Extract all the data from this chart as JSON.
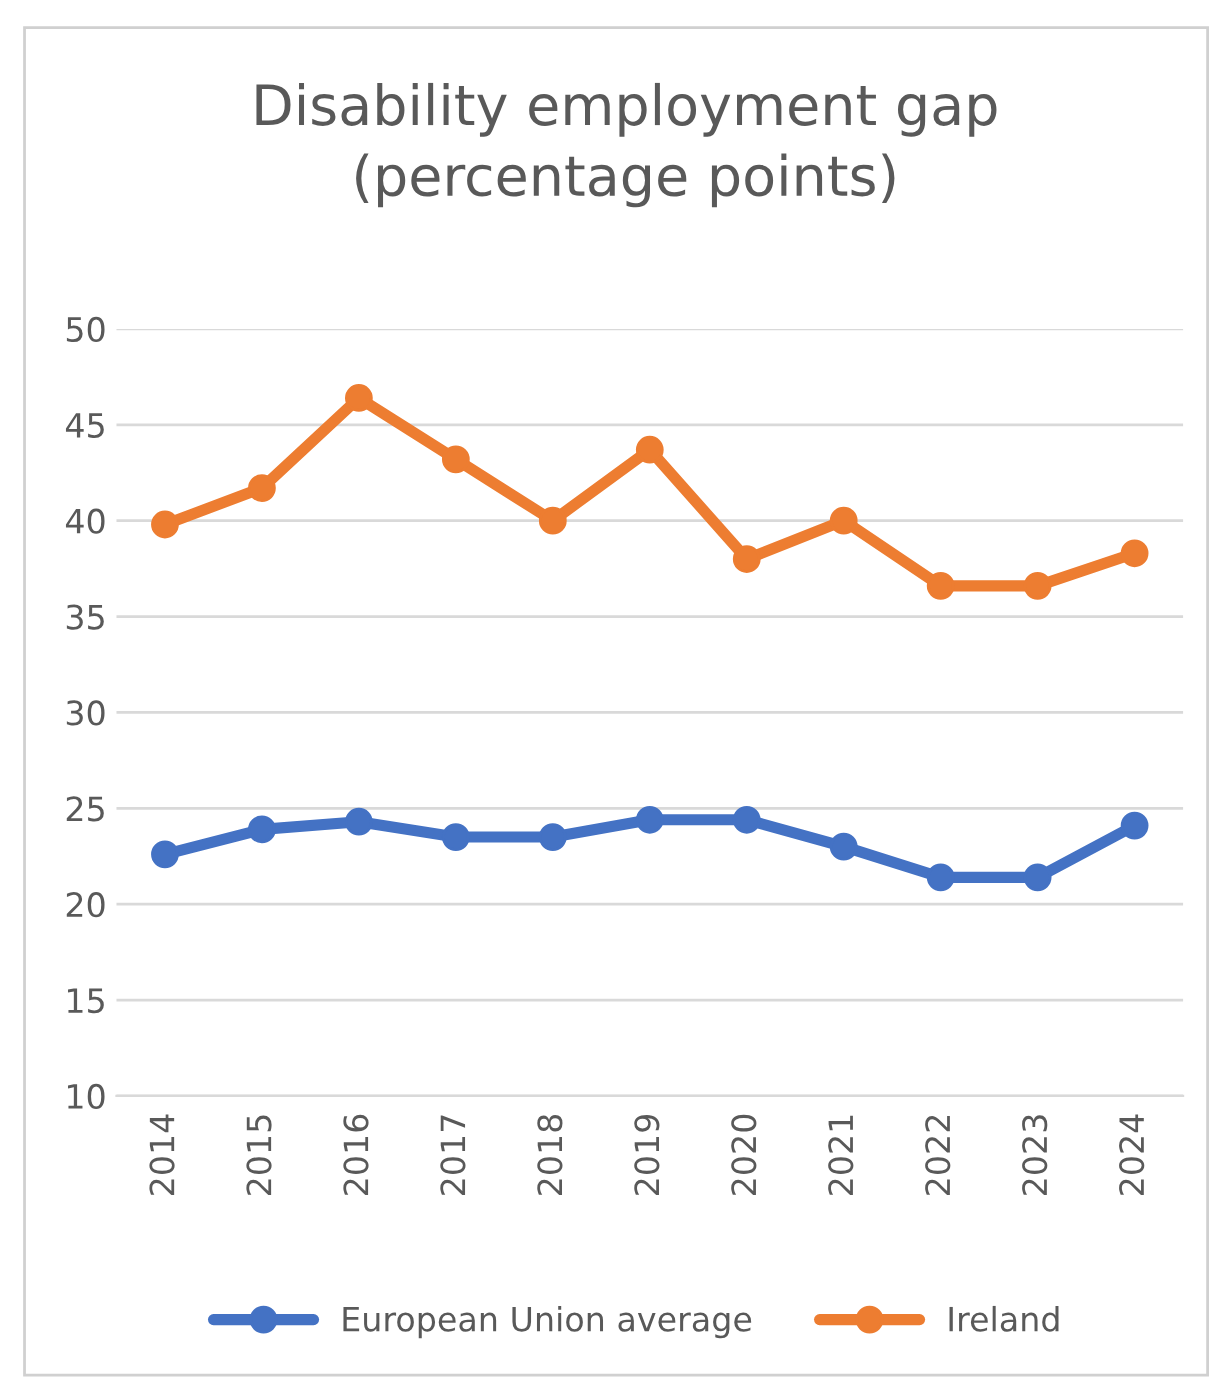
{
  "chart_data": {
    "type": "line",
    "title": "Disability employment gap\n(percentage points)",
    "categories": [
      "2014",
      "2015",
      "2016",
      "2017",
      "2018",
      "2019",
      "2020",
      "2021",
      "2022",
      "2023",
      "2024"
    ],
    "series": [
      {
        "name": "European Union average",
        "color": "#4472c4",
        "values": [
          22.6,
          23.9,
          24.3,
          23.5,
          23.5,
          24.4,
          24.4,
          23.0,
          21.4,
          21.4,
          24.1
        ]
      },
      {
        "name": "Ireland",
        "color": "#ed7d31",
        "values": [
          39.8,
          41.7,
          46.4,
          43.2,
          40.0,
          43.7,
          38.0,
          40.0,
          36.6,
          36.6,
          38.3
        ]
      }
    ],
    "ylim": [
      10,
      50
    ],
    "yticks": [
      10,
      15,
      20,
      25,
      30,
      35,
      40,
      45,
      50
    ],
    "grid": "y",
    "legend": "bottom",
    "marker": "circle",
    "line_style": "solid"
  }
}
